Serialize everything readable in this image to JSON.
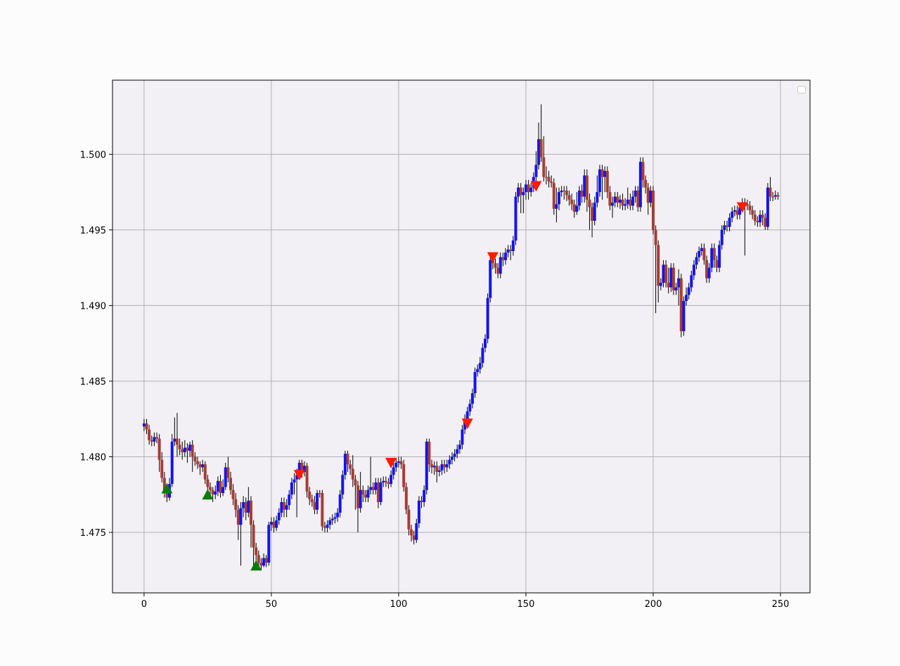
{
  "chart_data": {
    "type": "candlestick",
    "up_color": "#1414f0",
    "down_color": "#a83c32",
    "wick_color": "#000000",
    "grid": true,
    "xlim": [
      -12.4,
      261.6
    ],
    "ylim": [
      1.471,
      1.5049
    ],
    "xticks": [
      0,
      50,
      100,
      150,
      200,
      250
    ],
    "yticks": [
      1.475,
      {
        "value": 1.48,
        "label": "1.480"
      },
      1.485,
      {
        "value": 1.49,
        "label": "1.490"
      },
      1.495,
      {
        "value": 1.5,
        "label": "1.500"
      }
    ],
    "x": [
      0,
      1,
      2,
      3,
      4,
      5,
      6,
      7,
      8,
      9,
      10,
      11,
      12,
      13,
      14,
      15,
      16,
      17,
      18,
      19,
      20,
      21,
      22,
      23,
      24,
      25,
      26,
      27,
      28,
      29,
      30,
      31,
      32,
      33,
      34,
      35,
      36,
      37,
      38,
      39,
      40,
      41,
      42,
      43,
      44,
      45,
      46,
      47,
      48,
      49,
      50,
      51,
      52,
      53,
      54,
      55,
      56,
      57,
      58,
      59,
      60,
      61,
      62,
      63,
      64,
      65,
      66,
      67,
      68,
      69,
      70,
      71,
      72,
      73,
      74,
      75,
      76,
      77,
      78,
      79,
      80,
      81,
      82,
      83,
      84,
      85,
      86,
      87,
      88,
      89,
      90,
      91,
      92,
      93,
      94,
      95,
      96,
      97,
      98,
      99,
      100,
      101,
      102,
      103,
      104,
      105,
      106,
      107,
      108,
      109,
      110,
      111,
      112,
      113,
      114,
      115,
      116,
      117,
      118,
      119,
      120,
      121,
      122,
      123,
      124,
      125,
      126,
      127,
      128,
      129,
      130,
      131,
      132,
      133,
      134,
      135,
      136,
      137,
      138,
      139,
      140,
      141,
      142,
      143,
      144,
      145,
      146,
      147,
      148,
      149,
      150,
      151,
      152,
      153,
      154,
      155,
      156,
      157,
      158,
      159,
      160,
      161,
      162,
      163,
      164,
      165,
      166,
      167,
      168,
      169,
      170,
      171,
      172,
      173,
      174,
      175,
      176,
      177,
      178,
      179,
      180,
      181,
      182,
      183,
      184,
      185,
      186,
      187,
      188,
      189,
      190,
      191,
      192,
      193,
      194,
      195,
      196,
      197,
      198,
      199,
      200,
      201,
      202,
      203,
      204,
      205,
      206,
      207,
      208,
      209,
      210,
      211,
      212,
      213,
      214,
      215,
      216,
      217,
      218,
      219,
      220,
      221,
      222,
      223,
      224,
      225,
      226,
      227,
      228,
      229,
      230,
      231,
      232,
      233,
      234,
      235,
      236,
      237,
      238,
      239,
      240,
      241,
      242,
      243,
      244,
      245,
      246,
      247,
      248,
      249
    ],
    "open": [
      1.482,
      1.4822,
      1.4818,
      1.4811,
      1.481,
      1.4813,
      1.4812,
      1.4798,
      1.4786,
      1.4778,
      1.4773,
      1.4782,
      1.481,
      1.4812,
      1.4808,
      1.4805,
      1.4803,
      1.4806,
      1.4804,
      1.4808,
      1.48,
      1.4797,
      1.4795,
      1.4793,
      1.4795,
      1.4785,
      1.478,
      1.4778,
      1.4775,
      1.4777,
      1.4784,
      1.4776,
      1.478,
      1.4793,
      1.4786,
      1.4778,
      1.4772,
      1.4765,
      1.4755,
      1.4766,
      1.477,
      1.4763,
      1.4771,
      1.4755,
      1.474,
      1.4735,
      1.473,
      1.4728,
      1.4733,
      1.473,
      1.4755,
      1.4757,
      1.4753,
      1.4758,
      1.4763,
      1.477,
      1.4765,
      1.4768,
      1.4775,
      1.4783,
      1.4785,
      1.4788,
      1.4796,
      1.479,
      1.4794,
      1.4777,
      1.4772,
      1.477,
      1.4765,
      1.4776,
      1.4776,
      1.4754,
      1.4753,
      1.4755,
      1.4758,
      1.4759,
      1.476,
      1.4763,
      1.4775,
      1.4788,
      1.4802,
      1.4795,
      1.4792,
      1.4785,
      1.4781,
      1.4766,
      1.4778,
      1.4775,
      1.4773,
      1.4778,
      1.478,
      1.4778,
      1.4783,
      1.477,
      1.4783,
      1.4784,
      1.4783,
      1.4782,
      1.4788,
      1.4793,
      1.4796,
      1.4797,
      1.4795,
      1.478,
      1.4765,
      1.4752,
      1.4748,
      1.4745,
      1.4756,
      1.4771,
      1.477,
      1.4778,
      1.481,
      1.4795,
      1.4793,
      1.4794,
      1.479,
      1.4791,
      1.4795,
      1.4793,
      1.4795,
      1.4798,
      1.48,
      1.4802,
      1.4805,
      1.4808,
      1.4818,
      1.4825,
      1.483,
      1.4835,
      1.4842,
      1.4856,
      1.4858,
      1.4862,
      1.4872,
      1.4878,
      1.4905,
      1.493,
      1.4928,
      1.4925,
      1.4921,
      1.4932,
      1.493,
      1.4935,
      1.4937,
      1.4936,
      1.4943,
      1.4972,
      1.4978,
      1.4973,
      1.4975,
      1.498,
      1.4975,
      1.4978,
      1.4985,
      1.4993,
      1.501,
      1.4998,
      1.4985,
      1.4985,
      1.4982,
      1.4981,
      1.4964,
      1.4967,
      1.4975,
      1.4976,
      1.4976,
      1.4973,
      1.497,
      1.4967,
      1.4962,
      1.4966,
      1.4976,
      1.4972,
      1.4986,
      1.497,
      1.4965,
      1.4956,
      1.4968,
      1.4975,
      1.499,
      1.4985,
      1.4989,
      1.4975,
      1.4966,
      1.4968,
      1.4972,
      1.4968,
      1.497,
      1.4966,
      1.4967,
      1.497,
      1.4966,
      1.4972,
      1.4976,
      1.4965,
      1.4995,
      1.4983,
      1.4978,
      1.4968,
      1.4976,
      1.495,
      1.494,
      1.4913,
      1.4915,
      1.4927,
      1.4915,
      1.4912,
      1.4925,
      1.491,
      1.4912,
      1.4918,
      1.4883,
      1.4903,
      1.4907,
      1.4912,
      1.492,
      1.4927,
      1.4932,
      1.4936,
      1.4938,
      1.493,
      1.4918,
      1.4925,
      1.4938,
      1.493,
      1.4925,
      1.494,
      1.495,
      1.4953,
      1.4952,
      1.4958,
      1.4962,
      1.4963,
      1.496,
      1.4965,
      1.4968,
      1.4967,
      1.4966,
      1.4963,
      1.496,
      1.4956,
      1.4955,
      1.496,
      1.4958,
      1.4952,
      1.4978,
      1.4972,
      1.4972,
      1.4973
    ],
    "high": [
      1.4825,
      1.4825,
      1.4821,
      1.4814,
      1.4816,
      1.4816,
      1.4815,
      1.4803,
      1.479,
      1.4782,
      1.4786,
      1.4815,
      1.4826,
      1.4829,
      1.4812,
      1.481,
      1.4811,
      1.4809,
      1.481,
      1.4811,
      1.4803,
      1.48,
      1.4797,
      1.4798,
      1.4797,
      1.4788,
      1.4783,
      1.478,
      1.4781,
      1.4787,
      1.4788,
      1.4785,
      1.4796,
      1.48,
      1.479,
      1.4782,
      1.4776,
      1.4768,
      1.477,
      1.4774,
      1.4773,
      1.478,
      1.4774,
      1.4758,
      1.4743,
      1.4738,
      1.4733,
      1.4736,
      1.4735,
      1.4757,
      1.476,
      1.476,
      1.4761,
      1.4766,
      1.4773,
      1.4773,
      1.4772,
      1.4778,
      1.4786,
      1.4789,
      1.4792,
      1.4798,
      1.4798,
      1.4797,
      1.4796,
      1.478,
      1.4775,
      1.4774,
      1.4778,
      1.4778,
      1.4778,
      1.4757,
      1.4758,
      1.476,
      1.4762,
      1.4763,
      1.4766,
      1.4778,
      1.4791,
      1.4804,
      1.4804,
      1.4798,
      1.4801,
      1.4788,
      1.4784,
      1.479,
      1.4781,
      1.4778,
      1.4781,
      1.48,
      1.4783,
      1.4786,
      1.4786,
      1.4786,
      1.4787,
      1.4787,
      1.4786,
      1.4791,
      1.4796,
      1.4799,
      1.48,
      1.48,
      1.4798,
      1.4783,
      1.4768,
      1.4755,
      1.4751,
      1.4759,
      1.4774,
      1.4774,
      1.4781,
      1.4812,
      1.4812,
      1.4798,
      1.4797,
      1.4797,
      1.4794,
      1.4798,
      1.4798,
      1.4798,
      1.4801,
      1.4803,
      1.4805,
      1.4808,
      1.4811,
      1.4821,
      1.4828,
      1.4833,
      1.4838,
      1.4845,
      1.4859,
      1.4861,
      1.4866,
      1.4875,
      1.4881,
      1.4908,
      1.4933,
      1.4933,
      1.4931,
      1.4928,
      1.4935,
      1.4935,
      1.4938,
      1.494,
      1.494,
      1.4946,
      1.4975,
      1.4981,
      1.4981,
      1.4978,
      1.4983,
      1.4983,
      1.4981,
      1.4988,
      1.5002,
      1.5021,
      1.5033,
      1.5012,
      1.4992,
      1.4989,
      1.4986,
      1.4984,
      1.4978,
      1.4978,
      1.4979,
      1.4979,
      1.4979,
      1.4976,
      1.4974,
      1.497,
      1.4975,
      1.4979,
      1.498,
      1.499,
      1.499,
      1.4974,
      1.4968,
      1.4972,
      1.4986,
      1.4993,
      1.4993,
      1.4992,
      1.4992,
      1.4979,
      1.4972,
      1.4975,
      1.4975,
      1.4973,
      1.4974,
      1.4971,
      1.4978,
      1.4974,
      1.4976,
      1.4979,
      1.4979,
      1.4998,
      1.4998,
      1.4986,
      1.4981,
      1.4979,
      1.4979,
      1.4953,
      1.4943,
      1.4918,
      1.493,
      1.493,
      1.4925,
      1.4928,
      1.4928,
      1.4915,
      1.4924,
      1.4921,
      1.4906,
      1.4912,
      1.4915,
      1.4923,
      1.493,
      1.4935,
      1.4939,
      1.4941,
      1.4941,
      1.4933,
      1.4928,
      1.4941,
      1.4941,
      1.4933,
      1.4943,
      1.4953,
      1.4956,
      1.4956,
      1.4961,
      1.4965,
      1.4966,
      1.4966,
      1.4968,
      1.4971,
      1.4971,
      1.497,
      1.4969,
      1.4966,
      1.4963,
      1.4959,
      1.4963,
      1.4963,
      1.4961,
      1.4981,
      1.4985,
      1.4975,
      1.4976,
      1.4975
    ],
    "low": [
      1.4817,
      1.4815,
      1.4808,
      1.4807,
      1.4807,
      1.4809,
      1.479,
      1.4783,
      1.4773,
      1.477,
      1.4771,
      1.478,
      1.4807,
      1.48,
      1.4801,
      1.4798,
      1.48,
      1.4796,
      1.48,
      1.479,
      1.4794,
      1.4792,
      1.4788,
      1.479,
      1.4782,
      1.4776,
      1.4772,
      1.477,
      1.4772,
      1.4774,
      1.4773,
      1.4774,
      1.4778,
      1.4783,
      1.4775,
      1.4768,
      1.476,
      1.4745,
      1.4728,
      1.476,
      1.4758,
      1.476,
      1.474,
      1.4728,
      1.473,
      1.4727,
      1.4725,
      1.4727,
      1.4727,
      1.4728,
      1.4751,
      1.475,
      1.4751,
      1.4755,
      1.476,
      1.476,
      1.476,
      1.4765,
      1.4772,
      1.4775,
      1.476,
      1.4785,
      1.4786,
      1.4787,
      1.4773,
      1.4768,
      1.4767,
      1.4762,
      1.4762,
      1.4773,
      1.4751,
      1.475,
      1.475,
      1.4752,
      1.4755,
      1.4756,
      1.4757,
      1.476,
      1.4772,
      1.4785,
      1.479,
      1.4788,
      1.478,
      1.4765,
      1.475,
      1.4763,
      1.477,
      1.477,
      1.477,
      1.4775,
      1.4775,
      1.4775,
      1.4766,
      1.4768,
      1.478,
      1.478,
      1.4779,
      1.478,
      1.4785,
      1.479,
      1.4793,
      1.4792,
      1.4777,
      1.4762,
      1.4748,
      1.4744,
      1.4742,
      1.4743,
      1.4753,
      1.4766,
      1.4767,
      1.4775,
      1.479,
      1.4789,
      1.4788,
      1.4783,
      1.4787,
      1.4788,
      1.4789,
      1.479,
      1.4792,
      1.4795,
      1.4797,
      1.4799,
      1.4802,
      1.4805,
      1.4815,
      1.4822,
      1.4827,
      1.4832,
      1.4839,
      1.4853,
      1.4855,
      1.4859,
      1.4869,
      1.4875,
      1.4902,
      1.4924,
      1.4921,
      1.4918,
      1.4918,
      1.4926,
      1.4927,
      1.4932,
      1.493,
      1.4933,
      1.494,
      1.4968,
      1.4961,
      1.4961,
      1.497,
      1.497,
      1.4972,
      1.4975,
      1.4982,
      1.499,
      1.4995,
      1.4982,
      1.498,
      1.4978,
      1.4978,
      1.496,
      1.4955,
      1.4963,
      1.4972,
      1.497,
      1.4969,
      1.4966,
      1.4963,
      1.4958,
      1.496,
      1.4963,
      1.4968,
      1.4968,
      1.4962,
      1.495,
      1.4945,
      1.4953,
      1.4965,
      1.4972,
      1.497,
      1.4975,
      1.4971,
      1.4963,
      1.4958,
      1.4965,
      1.4965,
      1.4964,
      1.4963,
      1.4963,
      1.4964,
      1.4963,
      1.4963,
      1.4968,
      1.4962,
      1.4962,
      1.4978,
      1.4974,
      1.496,
      1.4965,
      1.4947,
      1.4895,
      1.4902,
      1.491,
      1.4912,
      1.4912,
      1.4908,
      1.4909,
      1.4907,
      1.4907,
      1.49,
      1.4879,
      1.488,
      1.49,
      1.4904,
      1.4909,
      1.4917,
      1.4924,
      1.4929,
      1.4933,
      1.4927,
      1.4915,
      1.4915,
      1.4922,
      1.4925,
      1.4922,
      1.4922,
      1.4937,
      1.4947,
      1.4949,
      1.4949,
      1.4955,
      1.4959,
      1.4957,
      1.4957,
      1.4962,
      1.4933,
      1.4963,
      1.496,
      1.4957,
      1.4953,
      1.4952,
      1.4952,
      1.4953,
      1.495,
      1.495,
      1.4969,
      1.4969,
      1.497,
      1.497
    ],
    "close": [
      1.4822,
      1.4818,
      1.4811,
      1.481,
      1.4813,
      1.4812,
      1.4798,
      1.4786,
      1.4778,
      1.4773,
      1.4782,
      1.481,
      1.4812,
      1.4808,
      1.4805,
      1.4803,
      1.4806,
      1.4804,
      1.4808,
      1.48,
      1.4797,
      1.4795,
      1.4793,
      1.4795,
      1.4785,
      1.478,
      1.4778,
      1.4775,
      1.4777,
      1.4784,
      1.4776,
      1.478,
      1.4793,
      1.4786,
      1.4778,
      1.4772,
      1.4765,
      1.4755,
      1.4766,
      1.477,
      1.4763,
      1.4771,
      1.4755,
      1.474,
      1.4735,
      1.473,
      1.4728,
      1.4733,
      1.473,
      1.4755,
      1.4757,
      1.4753,
      1.4758,
      1.4763,
      1.477,
      1.4765,
      1.4768,
      1.4775,
      1.4783,
      1.4785,
      1.4788,
      1.4796,
      1.479,
      1.4794,
      1.4777,
      1.4772,
      1.477,
      1.4765,
      1.4776,
      1.4776,
      1.4754,
      1.4753,
      1.4755,
      1.4758,
      1.4759,
      1.476,
      1.4763,
      1.4775,
      1.4788,
      1.4802,
      1.4795,
      1.4792,
      1.4785,
      1.4781,
      1.4766,
      1.4778,
      1.4775,
      1.4773,
      1.4778,
      1.478,
      1.4778,
      1.4783,
      1.477,
      1.4783,
      1.4784,
      1.4783,
      1.4782,
      1.4788,
      1.4793,
      1.4796,
      1.4797,
      1.4795,
      1.478,
      1.4765,
      1.4752,
      1.4748,
      1.4745,
      1.4756,
      1.4771,
      1.477,
      1.4778,
      1.481,
      1.4795,
      1.4793,
      1.4794,
      1.479,
      1.4791,
      1.4795,
      1.4793,
      1.4795,
      1.4798,
      1.48,
      1.4802,
      1.4805,
      1.4808,
      1.4818,
      1.4825,
      1.483,
      1.4835,
      1.4842,
      1.4856,
      1.4858,
      1.4862,
      1.4872,
      1.4878,
      1.4905,
      1.493,
      1.4928,
      1.4925,
      1.4921,
      1.4932,
      1.493,
      1.4935,
      1.4937,
      1.4936,
      1.4943,
      1.4972,
      1.4978,
      1.4973,
      1.4975,
      1.498,
      1.4975,
      1.4978,
      1.4985,
      1.4993,
      1.501,
      1.4998,
      1.4985,
      1.4985,
      1.4982,
      1.4981,
      1.4964,
      1.4967,
      1.4975,
      1.4976,
      1.4976,
      1.4973,
      1.497,
      1.4967,
      1.4962,
      1.4966,
      1.4976,
      1.4972,
      1.4986,
      1.497,
      1.4965,
      1.4956,
      1.4968,
      1.4975,
      1.499,
      1.4985,
      1.4989,
      1.4975,
      1.4966,
      1.4968,
      1.4972,
      1.4968,
      1.497,
      1.4966,
      1.4967,
      1.497,
      1.4966,
      1.4972,
      1.4976,
      1.4965,
      1.4995,
      1.4983,
      1.4978,
      1.4968,
      1.4976,
      1.495,
      1.494,
      1.4913,
      1.4915,
      1.4927,
      1.4915,
      1.4912,
      1.4925,
      1.491,
      1.4912,
      1.4918,
      1.4883,
      1.4903,
      1.4907,
      1.4912,
      1.492,
      1.4927,
      1.4932,
      1.4936,
      1.4938,
      1.493,
      1.4918,
      1.4925,
      1.4938,
      1.493,
      1.4925,
      1.494,
      1.495,
      1.4953,
      1.4952,
      1.4958,
      1.4962,
      1.4963,
      1.496,
      1.4965,
      1.4968,
      1.4967,
      1.4966,
      1.4963,
      1.496,
      1.4956,
      1.4955,
      1.496,
      1.4958,
      1.4952,
      1.4978,
      1.4972,
      1.4972,
      1.4973,
      1.4972
    ],
    "buy_signals": {
      "color": "#0b7a0b",
      "x": [
        9,
        25,
        44
      ],
      "y": [
        1.4779,
        1.4775,
        1.4728
      ]
    },
    "sell_signals": {
      "color": "#ff1a00",
      "x": [
        61,
        97,
        127,
        137,
        154,
        235
      ],
      "y": [
        1.4788,
        1.4796,
        1.4822,
        1.4932,
        1.4979,
        1.4965
      ]
    }
  }
}
